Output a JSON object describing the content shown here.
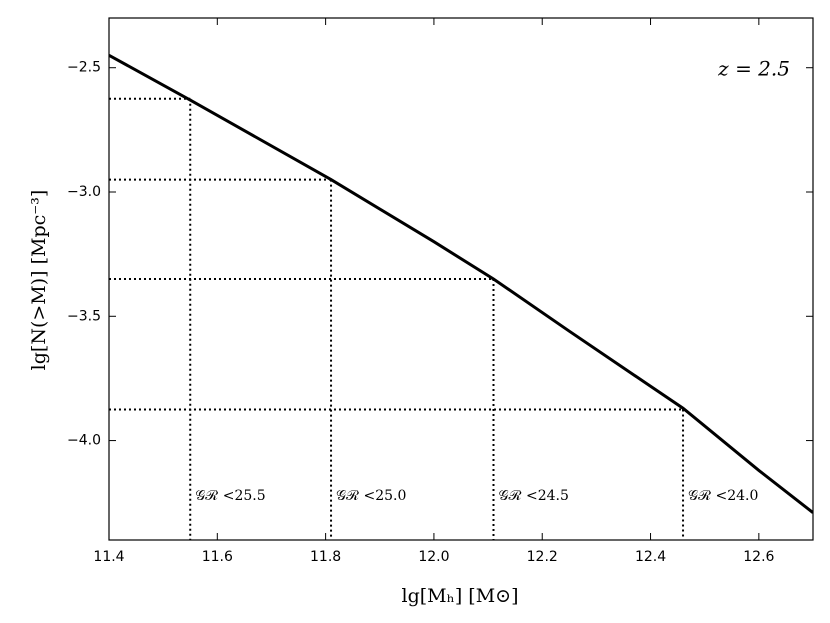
{
  "chart_data": {
    "type": "line",
    "x": [
      11.4,
      11.55,
      11.81,
      12.0,
      12.11,
      12.25,
      12.46,
      12.6,
      12.7
    ],
    "series": [
      {
        "color": "#000000",
        "values": [
          -2.45,
          -2.63,
          -2.95,
          -3.2,
          -3.35,
          -3.56,
          -3.87,
          -4.12,
          -4.29
        ]
      }
    ],
    "cuts": [
      {
        "x": 11.55,
        "y": -2.625,
        "label": "𝒢ℛ <25.5"
      },
      {
        "x": 11.81,
        "y": -2.95,
        "label": "𝒢ℛ <25.0"
      },
      {
        "x": 12.11,
        "y": -3.35,
        "label": "𝒢ℛ <24.5"
      },
      {
        "x": 12.46,
        "y": -3.875,
        "label": "𝒢ℛ <24.0"
      }
    ],
    "annotation": "z = 2.5",
    "x_label": "lg[Mₕ]  [M⊙]",
    "y_label": "lg[N(>M)]  [Mpc⁻³]",
    "xlim": [
      11.4,
      12.7
    ],
    "ylim": [
      -4.4,
      -2.3
    ],
    "xticks": [
      11.4,
      11.6,
      11.8,
      {
        "value": 12,
        "label": "12.0"
      },
      12.2,
      12.4,
      12.6
    ],
    "yticks": [
      {
        "value": -2.5,
        "label": "−2.5"
      },
      {
        "value": -3,
        "label": "−3.0"
      },
      {
        "value": -3.5,
        "label": "−3.5"
      },
      {
        "value": -4,
        "label": "−4.0"
      }
    ],
    "grid": false
  }
}
